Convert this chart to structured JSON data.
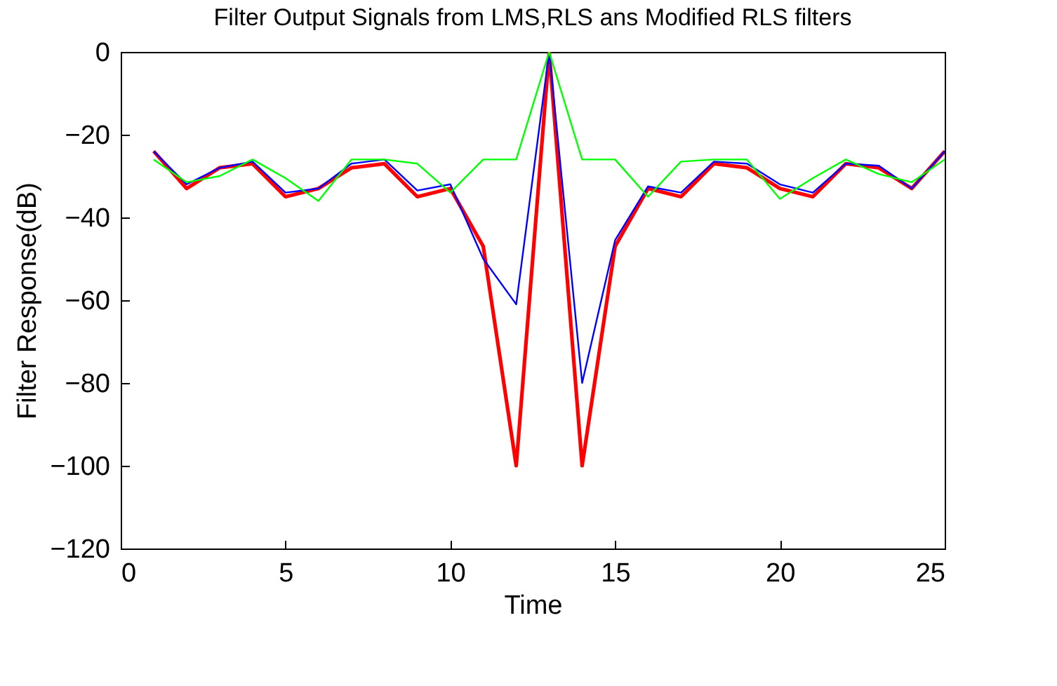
{
  "chart_data": {
    "type": "line",
    "title": "Filter Output Signals from LMS,RLS ans Modified RLS filters",
    "xlabel": "Time",
    "ylabel": "Filter Response(dB)",
    "x": [
      1,
      2,
      3,
      4,
      5,
      6,
      7,
      8,
      9,
      10,
      11,
      12,
      13,
      14,
      15,
      16,
      17,
      18,
      19,
      20,
      21,
      22,
      23,
      24,
      25
    ],
    "series": [
      {
        "color": "#ff0000",
        "values": [
          -24,
          -33,
          -28,
          -27,
          -35,
          -33,
          -28,
          -27,
          -35,
          -33,
          -47,
          -100,
          0,
          -100,
          -47,
          -33,
          -35,
          -27,
          -28,
          -33,
          -35,
          -27,
          -28,
          -33,
          -24
        ]
      },
      {
        "color": "#0000ff",
        "values": [
          -24,
          -32,
          -28,
          -26.5,
          -34,
          -33,
          -27,
          -26,
          -33.5,
          -32,
          -50,
          -61,
          0,
          -80,
          -45.5,
          -32.5,
          -34,
          -26.5,
          -27,
          -32,
          -34,
          -27,
          -27.5,
          -33,
          -24
        ]
      },
      {
        "color": "#00ff00",
        "values": [
          -26,
          -31.5,
          -30,
          -26,
          -30.5,
          -36,
          -26,
          -26,
          -27,
          -34,
          -26,
          -26,
          0,
          -26,
          -26,
          -35,
          -26.5,
          -26,
          -26,
          -35.5,
          -30.5,
          -26,
          -29.5,
          -31.5,
          -26
        ]
      }
    ],
    "xlim": [
      0,
      25
    ],
    "xticks": [
      0,
      5,
      10,
      15,
      20,
      25
    ],
    "ylim": [
      -120,
      0
    ],
    "yticks": [
      -120,
      -100,
      -80,
      -60,
      -40,
      -20,
      0
    ],
    "grid": false,
    "marker": "none",
    "line_style": "solid"
  }
}
